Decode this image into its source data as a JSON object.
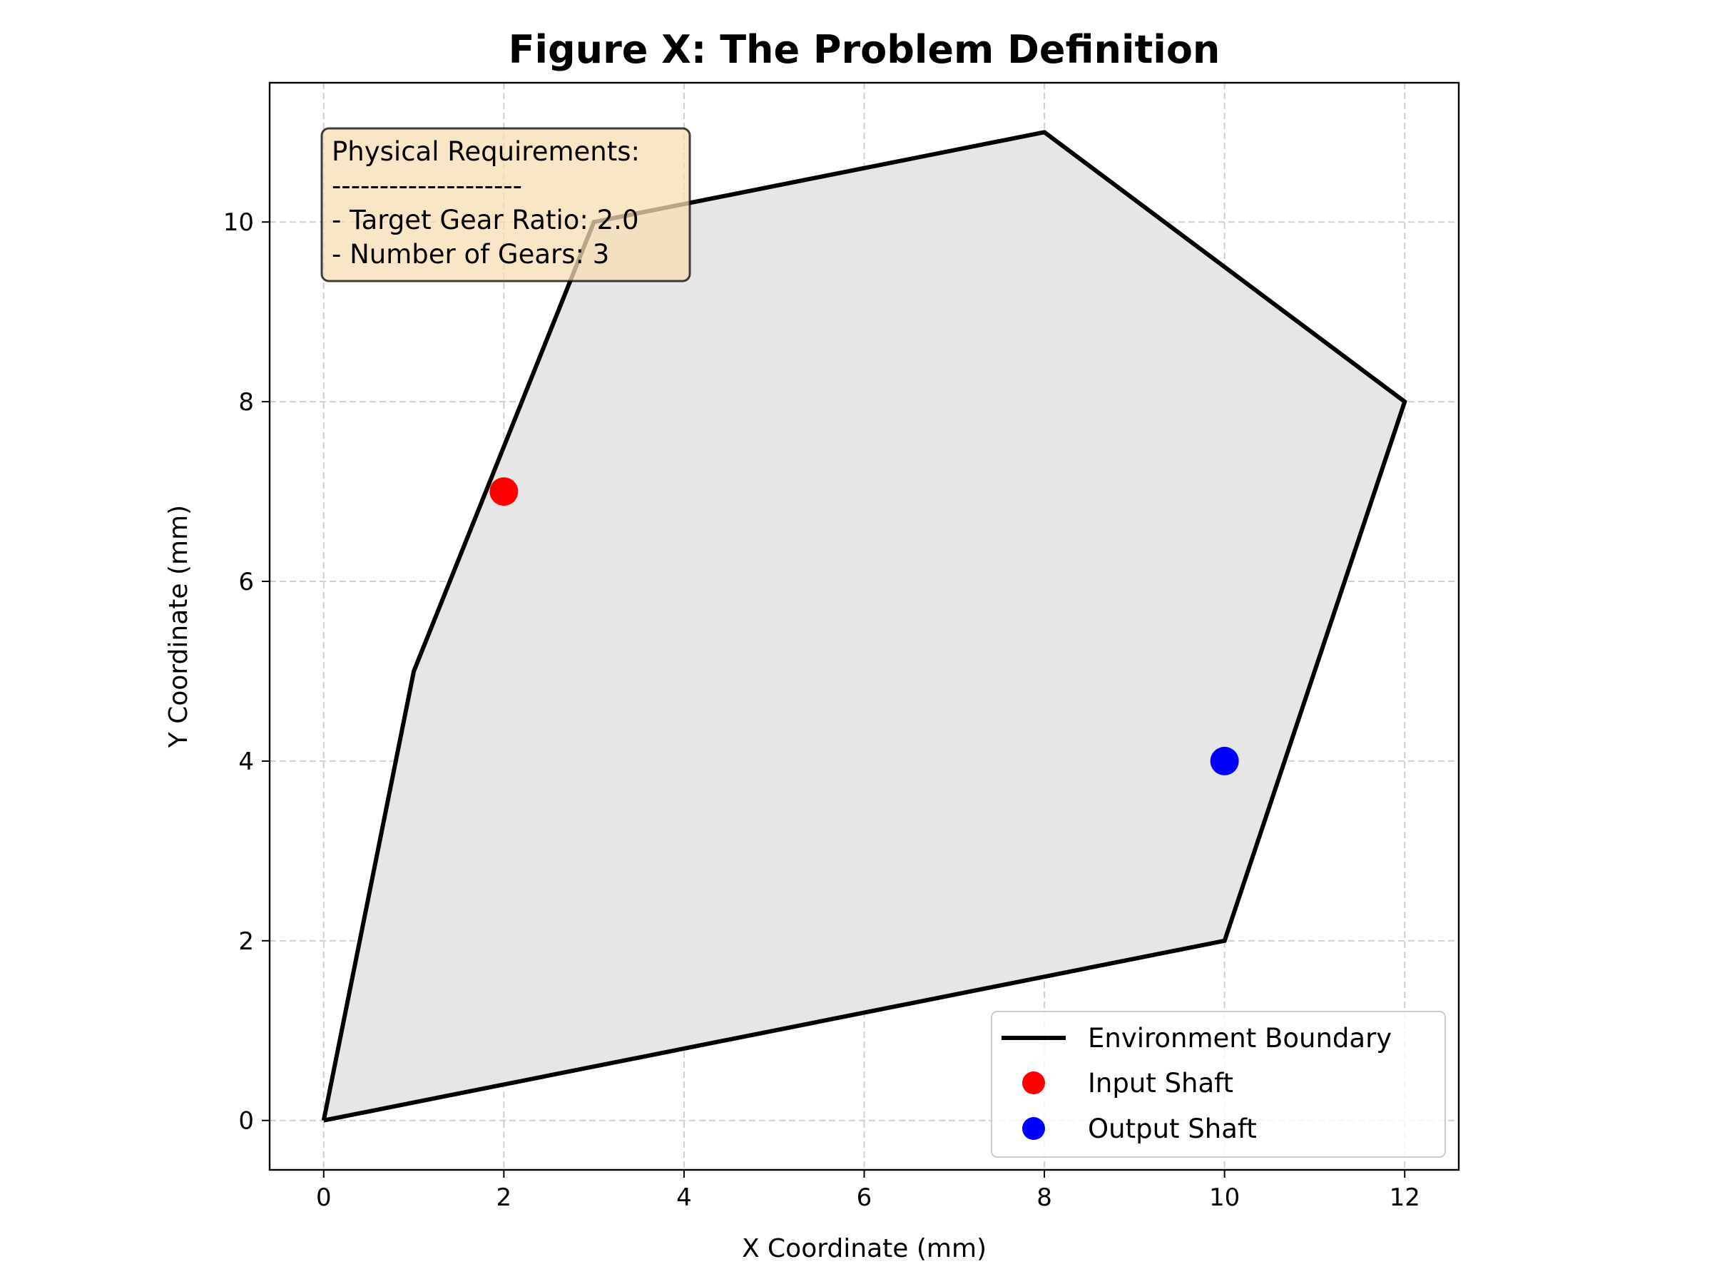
{
  "chart_data": {
    "type": "scatter",
    "title": "Figure X: The Problem Definition",
    "xlabel": "X Coordinate (mm)",
    "ylabel": "Y Coordinate (mm)",
    "xlim": [
      -0.6,
      12.6
    ],
    "ylim": [
      -0.55,
      11.55
    ],
    "x_ticks": [
      0,
      2,
      4,
      6,
      8,
      10,
      12
    ],
    "y_ticks": [
      0,
      2,
      4,
      6,
      8,
      10
    ],
    "x_tick_labels": [
      "0",
      "2",
      "4",
      "6",
      "8",
      "10",
      "12"
    ],
    "y_tick_labels": [
      "0",
      "2",
      "4",
      "6",
      "8",
      "10"
    ],
    "grid": true,
    "boundary": {
      "name": "Environment Boundary",
      "color": "#000000",
      "fill_color": "#e6e6e6",
      "points": [
        [
          0,
          0
        ],
        [
          1,
          5
        ],
        [
          3,
          10
        ],
        [
          8,
          11
        ],
        [
          12,
          8
        ],
        [
          10,
          2
        ],
        [
          0,
          0
        ]
      ]
    },
    "points": [
      {
        "name": "Input Shaft",
        "x": 2,
        "y": 7,
        "color": "#ff0000"
      },
      {
        "name": "Output Shaft",
        "x": 10,
        "y": 4,
        "color": "#0000ff"
      }
    ],
    "legend": {
      "position": "lower-right",
      "entries": [
        "Environment Boundary",
        "Input Shaft",
        "Output Shaft"
      ]
    },
    "annotation": {
      "position": "top-left",
      "lines": [
        "Physical Requirements:",
        "--------------------",
        "- Target Gear Ratio: 2.0",
        "- Number of Gears: 3"
      ],
      "background": "#f5deb3"
    }
  }
}
